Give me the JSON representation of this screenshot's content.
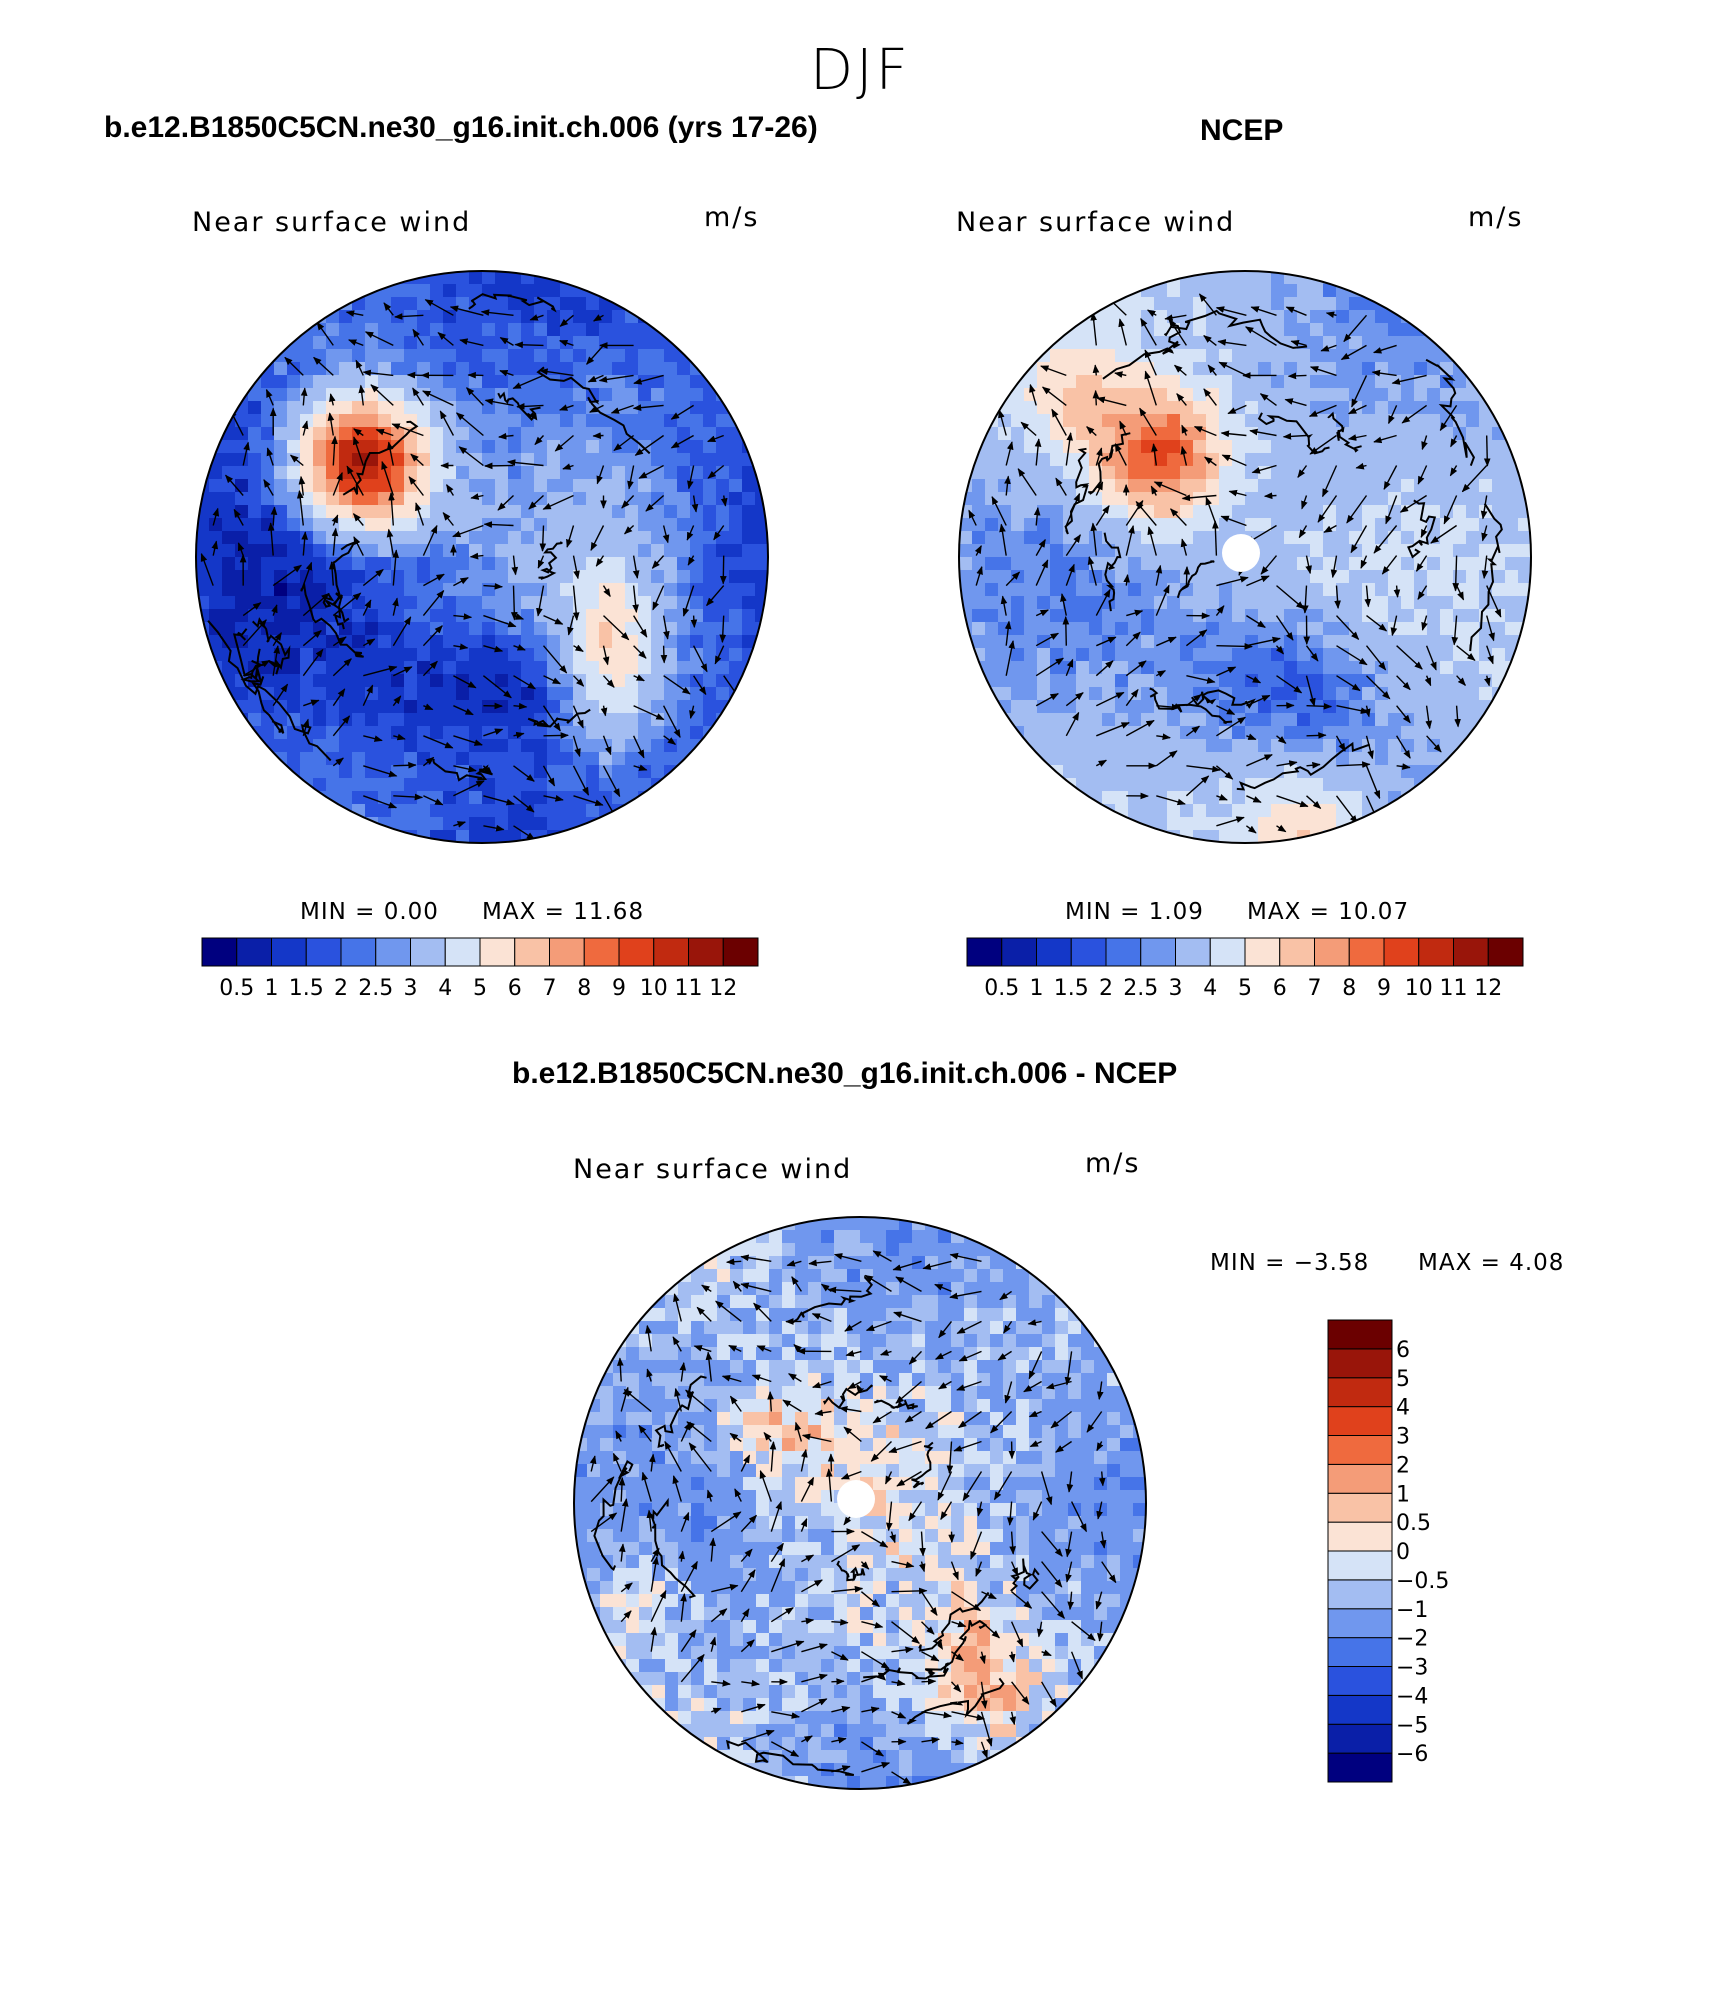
{
  "figure": {
    "season": "DJF"
  },
  "chart_data": [
    {
      "type": "heatmap",
      "projection": "north-polar-stereographic",
      "title": "b.e12.B1850C5CN.ne30_g16.init.ch.006 (yrs 17-26)",
      "left_label": "Near surface wind",
      "right_label": "m/s",
      "min_text": "MIN =    0.00",
      "max_text": "MAX =   11.68",
      "min": 0.0,
      "max": 11.68,
      "levels": [
        "0.5",
        "1",
        "1.5",
        "2",
        "2.5",
        "3",
        "4",
        "5",
        "6",
        "7",
        "8",
        "9",
        "10",
        "11",
        "12"
      ],
      "colors": [
        "#00007f",
        "#0a1fa8",
        "#1437c8",
        "#2a52de",
        "#4674e8",
        "#7097ee",
        "#a3bdf2",
        "#d5e3f7",
        "#fbe3d5",
        "#f9c2a6",
        "#f49c78",
        "#ef6a3e",
        "#e0411c",
        "#c12a10",
        "#99150a",
        "#6b0000"
      ],
      "vectors": true
    },
    {
      "type": "heatmap",
      "projection": "north-polar-stereographic",
      "title": "NCEP",
      "left_label": "Near surface wind",
      "right_label": "m/s",
      "min_text": "MIN =    1.09",
      "max_text": "MAX =   10.07",
      "min": 1.09,
      "max": 10.07,
      "levels": [
        "0.5",
        "1",
        "1.5",
        "2",
        "2.5",
        "3",
        "4",
        "5",
        "6",
        "7",
        "8",
        "9",
        "10",
        "11",
        "12"
      ],
      "colors": [
        "#00007f",
        "#0a1fa8",
        "#1437c8",
        "#2a52de",
        "#4674e8",
        "#7097ee",
        "#a3bdf2",
        "#d5e3f7",
        "#fbe3d5",
        "#f9c2a6",
        "#f49c78",
        "#ef6a3e",
        "#e0411c",
        "#c12a10",
        "#99150a",
        "#6b0000"
      ],
      "vectors": true
    },
    {
      "type": "heatmap",
      "projection": "north-polar-stereographic",
      "title": "b.e12.B1850C5CN.ne30_g16.init.ch.006 - NCEP",
      "left_label": "Near surface wind",
      "right_label": "m/s",
      "min_text": "MIN =   −3.58",
      "max_text": "MAX =    4.08",
      "min": -3.58,
      "max": 4.08,
      "levels": [
        "−6",
        "−5",
        "−4",
        "−3",
        "−2",
        "−1",
        "−0.5",
        "0",
        "0.5",
        "1",
        "2",
        "3",
        "4",
        "5",
        "6"
      ],
      "colors": [
        "#00007f",
        "#0a1fa8",
        "#1437c8",
        "#2a52de",
        "#4674e8",
        "#7097ee",
        "#a3bdf2",
        "#d5e3f7",
        "#fbe3d5",
        "#f9c2a6",
        "#f49c78",
        "#ef6a3e",
        "#e0411c",
        "#c12a10",
        "#99150a",
        "#6b0000"
      ],
      "vectors": true
    }
  ]
}
